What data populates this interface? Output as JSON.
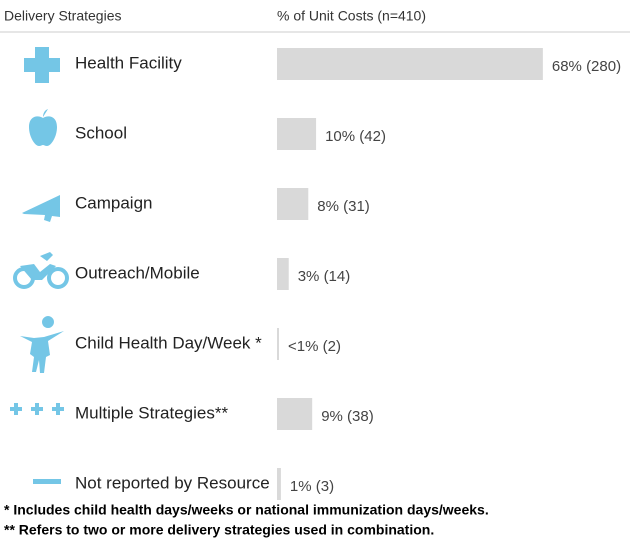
{
  "chart_data": {
    "type": "bar",
    "orientation": "horizontal",
    "category_header": "Delivery Strategies",
    "value_header": "% of Unit Costs (n=410)",
    "categories": [
      "Health Facility",
      "School",
      "Campaign",
      "Outreach/Mobile",
      "Child Health Day/Week *",
      "Multiple Strategies**",
      "Not reported by Resource"
    ],
    "values": [
      68,
      10,
      8,
      3,
      0.5,
      9,
      1
    ],
    "value_labels": [
      "68% (280)",
      "10% (42)",
      "8% (31)",
      "3% (14)",
      "<1% (2)",
      "9% (38)",
      "1% (3)"
    ],
    "color": "#d9d9d9",
    "footnotes": [
      "* Includes child health days/weeks or national immunization days/weeks.",
      "** Refers to two or more delivery strategies used in combination."
    ]
  }
}
